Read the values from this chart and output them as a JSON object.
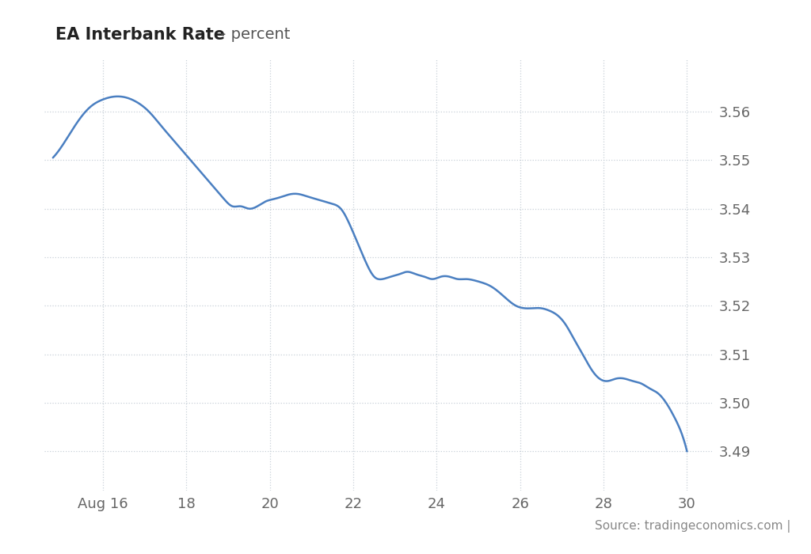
{
  "title_bold": "EA Interbank Rate",
  "title_regular": " - percent",
  "background_color": "#ffffff",
  "plot_bg_color": "#ffffff",
  "line_color": "#4a7fc1",
  "line_width": 1.8,
  "source_text": "Source: tradingeconomics.com |",
  "x_ticks": [
    16,
    18,
    20,
    22,
    24,
    26,
    28,
    30
  ],
  "x_tick_labels": [
    "Aug 16",
    "18",
    "20",
    "22",
    "24",
    "26",
    "28",
    "30"
  ],
  "y_ticks": [
    3.49,
    3.5,
    3.51,
    3.52,
    3.53,
    3.54,
    3.55,
    3.56
  ],
  "ylim": [
    3.482,
    3.571
  ],
  "xlim": [
    14.6,
    30.6
  ],
  "x_data": [
    14.8,
    15.1,
    15.4,
    15.7,
    16.0,
    16.2,
    16.5,
    16.8,
    17.1,
    17.4,
    17.7,
    18.0,
    18.3,
    18.6,
    18.9,
    19.1,
    19.3,
    19.5,
    19.7,
    19.9,
    20.1,
    20.3,
    20.5,
    20.7,
    20.9,
    21.1,
    21.3,
    21.5,
    21.7,
    21.9,
    22.1,
    22.3,
    22.5,
    22.7,
    22.9,
    23.1,
    23.3,
    23.5,
    23.7,
    23.9,
    24.1,
    24.3,
    24.5,
    24.7,
    25.0,
    25.3,
    25.6,
    25.9,
    26.1,
    26.3,
    26.5,
    26.7,
    26.9,
    27.1,
    27.3,
    27.5,
    27.7,
    27.9,
    28.1,
    28.3,
    28.5,
    28.7,
    28.9,
    29.1,
    29.3,
    29.5,
    29.7,
    29.9,
    30.0
  ],
  "y_data": [
    3.5505,
    3.554,
    3.558,
    3.561,
    3.5625,
    3.563,
    3.563,
    3.562,
    3.56,
    3.557,
    3.554,
    3.551,
    3.548,
    3.545,
    3.542,
    3.5405,
    3.5405,
    3.54,
    3.5405,
    3.5415,
    3.542,
    3.5425,
    3.543,
    3.543,
    3.5425,
    3.542,
    3.5415,
    3.541,
    3.54,
    3.537,
    3.533,
    3.529,
    3.526,
    3.5255,
    3.526,
    3.5265,
    3.527,
    3.5265,
    3.526,
    3.5255,
    3.526,
    3.526,
    3.5255,
    3.5255,
    3.525,
    3.524,
    3.522,
    3.52,
    3.5195,
    3.5195,
    3.5195,
    3.519,
    3.518,
    3.516,
    3.513,
    3.51,
    3.507,
    3.505,
    3.5045,
    3.505,
    3.505,
    3.5045,
    3.504,
    3.503,
    3.502,
    3.5,
    3.497,
    3.493,
    3.49
  ]
}
